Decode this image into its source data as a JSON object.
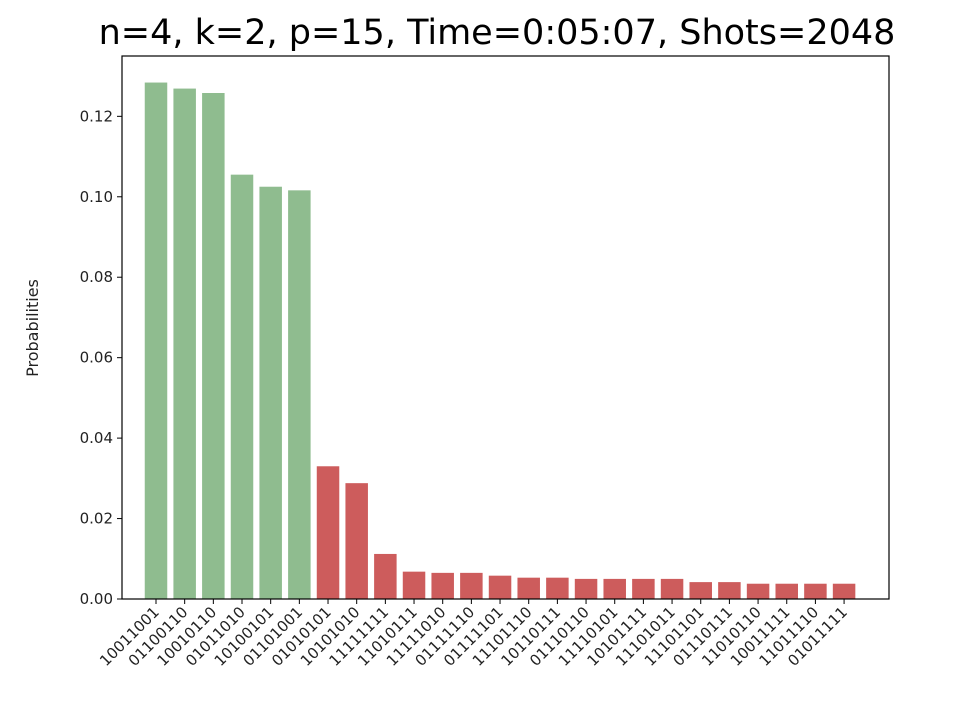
{
  "chart_data": {
    "type": "bar",
    "title": "n=4, k=2, p=15, Time=0:05:07, Shots=2048",
    "xlabel": "",
    "ylabel": "Probabilities",
    "ylim": [
      0,
      0.135
    ],
    "yticks": [
      "0.00",
      "0.02",
      "0.04",
      "0.06",
      "0.08",
      "0.10",
      "0.12"
    ],
    "grid": false,
    "legend": "none",
    "colors": {
      "valid": "#8fbc8f",
      "invalid": "#cd5c5c"
    },
    "categories": [
      "10011001",
      "01100110",
      "10010110",
      "01011010",
      "10100101",
      "01101001",
      "01010101",
      "10101010",
      "11111111",
      "11010111",
      "11111010",
      "01111110",
      "01111101",
      "11101110",
      "10110111",
      "01110110",
      "11110101",
      "10101111",
      "11101011",
      "11101101",
      "01110111",
      "11010110",
      "10011111",
      "11011110",
      "01011111"
    ],
    "values": [
      0.1284,
      0.1269,
      0.1258,
      0.1055,
      0.1025,
      0.1016,
      0.033,
      0.0288,
      0.0112,
      0.0068,
      0.0065,
      0.0065,
      0.0058,
      0.0053,
      0.0053,
      0.005,
      0.005,
      0.005,
      0.005,
      0.0042,
      0.0042,
      0.0038,
      0.0038,
      0.0038,
      0.0038
    ],
    "highlight": [
      true,
      true,
      true,
      true,
      true,
      true,
      false,
      false,
      false,
      false,
      false,
      false,
      false,
      false,
      false,
      false,
      false,
      false,
      false,
      false,
      false,
      false,
      false,
      false,
      false
    ]
  }
}
